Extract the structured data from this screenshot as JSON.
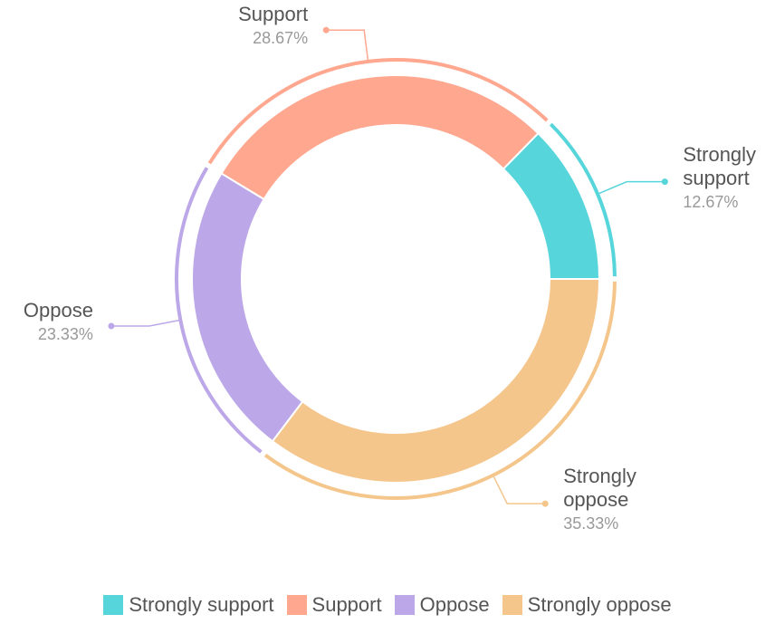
{
  "chart_data": {
    "type": "donut",
    "categories": [
      "Strongly support",
      "Support",
      "Oppose",
      "Strongly oppose"
    ],
    "values": [
      12.67,
      28.67,
      23.33,
      35.33
    ],
    "value_labels": [
      "12.67%",
      "28.67%",
      "23.33%",
      "35.33%"
    ],
    "colors": [
      "#56d5db",
      "#ffa78f",
      "#bca8e8",
      "#f5c68c"
    ],
    "legend": "bottom"
  }
}
